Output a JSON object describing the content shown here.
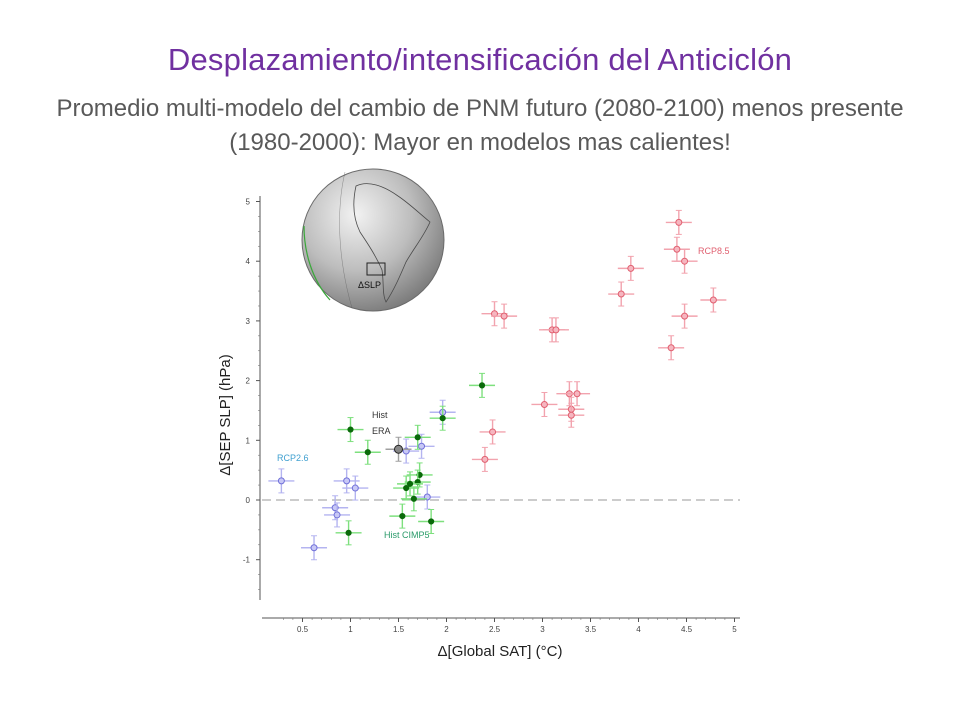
{
  "header": {
    "title": "Desplazamiento/intensificación del Anticiclón",
    "subtitle": "Promedio multi-modelo del cambio de PNM futuro (2080-2100) menos presente (1980-2000): Mayor en modelos mas calientes!"
  },
  "globe": {
    "box_label": "ΔSLP"
  },
  "chart_data": {
    "type": "scatter",
    "xlabel": "Δ[Global SAT]  (°C)",
    "ylabel": "Δ[SEP SLP]  (hPa)",
    "xlim": [
      0.2,
      5
    ],
    "ylim": [
      -1.6,
      5
    ],
    "xticks": [
      "0.5",
      "1",
      "1.5",
      "2",
      "2.5",
      "3",
      "3.5",
      "4",
      "4.5",
      "5"
    ],
    "yticks": [
      "-1",
      "0",
      "1",
      "2",
      "3",
      "4",
      "5"
    ],
    "zero_line": true,
    "colors": {
      "RCP8.5": "#e8808f",
      "RCP2.6": "#8f8fe6",
      "Hist CIMP5": "#0a8a0a",
      "Hist ERA": "#808080"
    },
    "series": [
      {
        "name": "RCP8.5",
        "points": [
          {
            "x": 4.42,
            "y": 4.65
          },
          {
            "x": 4.4,
            "y": 4.2
          },
          {
            "x": 4.48,
            "y": 4.0
          },
          {
            "x": 3.92,
            "y": 3.88
          },
          {
            "x": 3.82,
            "y": 3.45
          },
          {
            "x": 4.78,
            "y": 3.35
          },
          {
            "x": 2.5,
            "y": 3.12
          },
          {
            "x": 2.6,
            "y": 3.08
          },
          {
            "x": 4.48,
            "y": 3.08
          },
          {
            "x": 3.1,
            "y": 2.85
          },
          {
            "x": 3.14,
            "y": 2.85
          },
          {
            "x": 4.34,
            "y": 2.55
          },
          {
            "x": 3.28,
            "y": 1.78
          },
          {
            "x": 3.36,
            "y": 1.78
          },
          {
            "x": 3.02,
            "y": 1.6
          },
          {
            "x": 3.3,
            "y": 1.52
          },
          {
            "x": 3.3,
            "y": 1.42
          },
          {
            "x": 2.48,
            "y": 1.14
          },
          {
            "x": 2.4,
            "y": 0.68
          }
        ]
      },
      {
        "name": "RCP2.6",
        "points": [
          {
            "x": 1.96,
            "y": 1.47
          },
          {
            "x": 1.74,
            "y": 0.9
          },
          {
            "x": 1.58,
            "y": 0.82
          },
          {
            "x": 0.28,
            "y": 0.32
          },
          {
            "x": 0.96,
            "y": 0.32
          },
          {
            "x": 1.05,
            "y": 0.2
          },
          {
            "x": 1.8,
            "y": 0.05
          },
          {
            "x": 0.84,
            "y": -0.13
          },
          {
            "x": 0.86,
            "y": -0.25
          },
          {
            "x": 0.62,
            "y": -0.8
          }
        ]
      },
      {
        "name": "Hist CIMP5",
        "points": [
          {
            "x": 2.37,
            "y": 1.92
          },
          {
            "x": 1.96,
            "y": 1.37
          },
          {
            "x": 1.0,
            "y": 1.18
          },
          {
            "x": 1.7,
            "y": 1.05
          },
          {
            "x": 1.18,
            "y": 0.8
          },
          {
            "x": 1.72,
            "y": 0.42
          },
          {
            "x": 1.7,
            "y": 0.3
          },
          {
            "x": 1.62,
            "y": 0.27
          },
          {
            "x": 1.58,
            "y": 0.2
          },
          {
            "x": 1.66,
            "y": 0.02
          },
          {
            "x": 1.54,
            "y": -0.27
          },
          {
            "x": 1.84,
            "y": -0.36
          },
          {
            "x": 0.98,
            "y": -0.55
          }
        ]
      },
      {
        "name": "Hist ERA",
        "points": [
          {
            "x": 1.5,
            "y": 0.85
          }
        ]
      }
    ],
    "annotations": [
      {
        "text": "RCP8.5",
        "series": "RCP8.5"
      },
      {
        "text": "RCP2.6",
        "series": "RCP2.6"
      },
      {
        "text": "Hist",
        "series": "Hist ERA"
      },
      {
        "text": "ERA",
        "series": "Hist ERA"
      },
      {
        "text": "Hist CIMP5",
        "series": "Hist CIMP5"
      }
    ]
  }
}
